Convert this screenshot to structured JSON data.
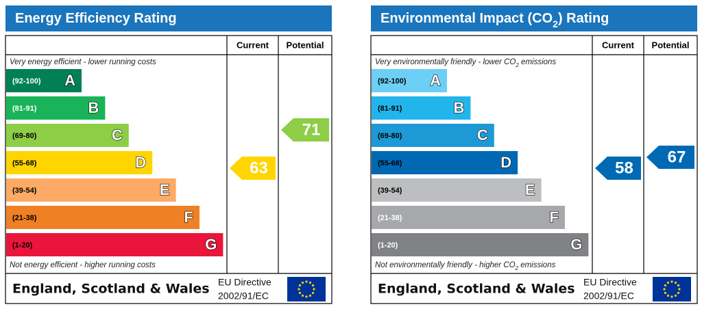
{
  "panels": [
    {
      "title": [
        "Energy Efficiency Rating"
      ],
      "columns": [
        "Current",
        "Potential"
      ],
      "top_note": [
        "Very energy efficient - lower running costs"
      ],
      "bottom_note": [
        "Not energy efficient - higher running costs"
      ],
      "bands": [
        {
          "range": "(92-100)",
          "letter": "A",
          "color": "#008054",
          "label_color": "#ffffff"
        },
        {
          "range": "(81-91)",
          "letter": "B",
          "color": "#19b459",
          "label_color": "#ffffff"
        },
        {
          "range": "(69-80)",
          "letter": "C",
          "color": "#8dce46",
          "label_color": "#000000"
        },
        {
          "range": "(55-68)",
          "letter": "D",
          "color": "#ffd500",
          "label_color": "#000000"
        },
        {
          "range": "(39-54)",
          "letter": "E",
          "color": "#fcaa65",
          "label_color": "#000000"
        },
        {
          "range": "(21-38)",
          "letter": "F",
          "color": "#ef8023",
          "label_color": "#000000"
        },
        {
          "range": "(1-20)",
          "letter": "G",
          "color": "#e9153b",
          "label_color": "#000000"
        }
      ],
      "current": 63,
      "potential": 71,
      "region": "England, Scotland & Wales",
      "directive": [
        "EU Directive",
        "2002/91/EC"
      ]
    },
    {
      "title": [
        "Environmental Impact (CO",
        "2",
        ") Rating"
      ],
      "columns": [
        "Current",
        "Potential"
      ],
      "top_note": [
        "Very environmentally friendly - lower CO",
        "2",
        " emissions"
      ],
      "bottom_note": [
        "Not environmentally friendly - higher CO",
        "2",
        " emissions"
      ],
      "bands": [
        {
          "range": "(92-100)",
          "letter": "A",
          "color": "#6ecff6",
          "label_color": "#000000"
        },
        {
          "range": "(81-91)",
          "letter": "B",
          "color": "#22b5ec",
          "label_color": "#000000"
        },
        {
          "range": "(69-80)",
          "letter": "C",
          "color": "#1d9ad6",
          "label_color": "#000000"
        },
        {
          "range": "(55-68)",
          "letter": "D",
          "color": "#0069b4",
          "label_color": "#000000"
        },
        {
          "range": "(39-54)",
          "letter": "E",
          "color": "#bcbec0",
          "label_color": "#000000"
        },
        {
          "range": "(21-38)",
          "letter": "F",
          "color": "#a6a8ab",
          "label_color": "#ffffff"
        },
        {
          "range": "(1-20)",
          "letter": "G",
          "color": "#808285",
          "label_color": "#ffffff"
        }
      ],
      "current": 58,
      "potential": 67,
      "region": "England, Scotland & Wales",
      "directive": [
        "EU Directive",
        "2002/91/EC"
      ]
    }
  ]
}
